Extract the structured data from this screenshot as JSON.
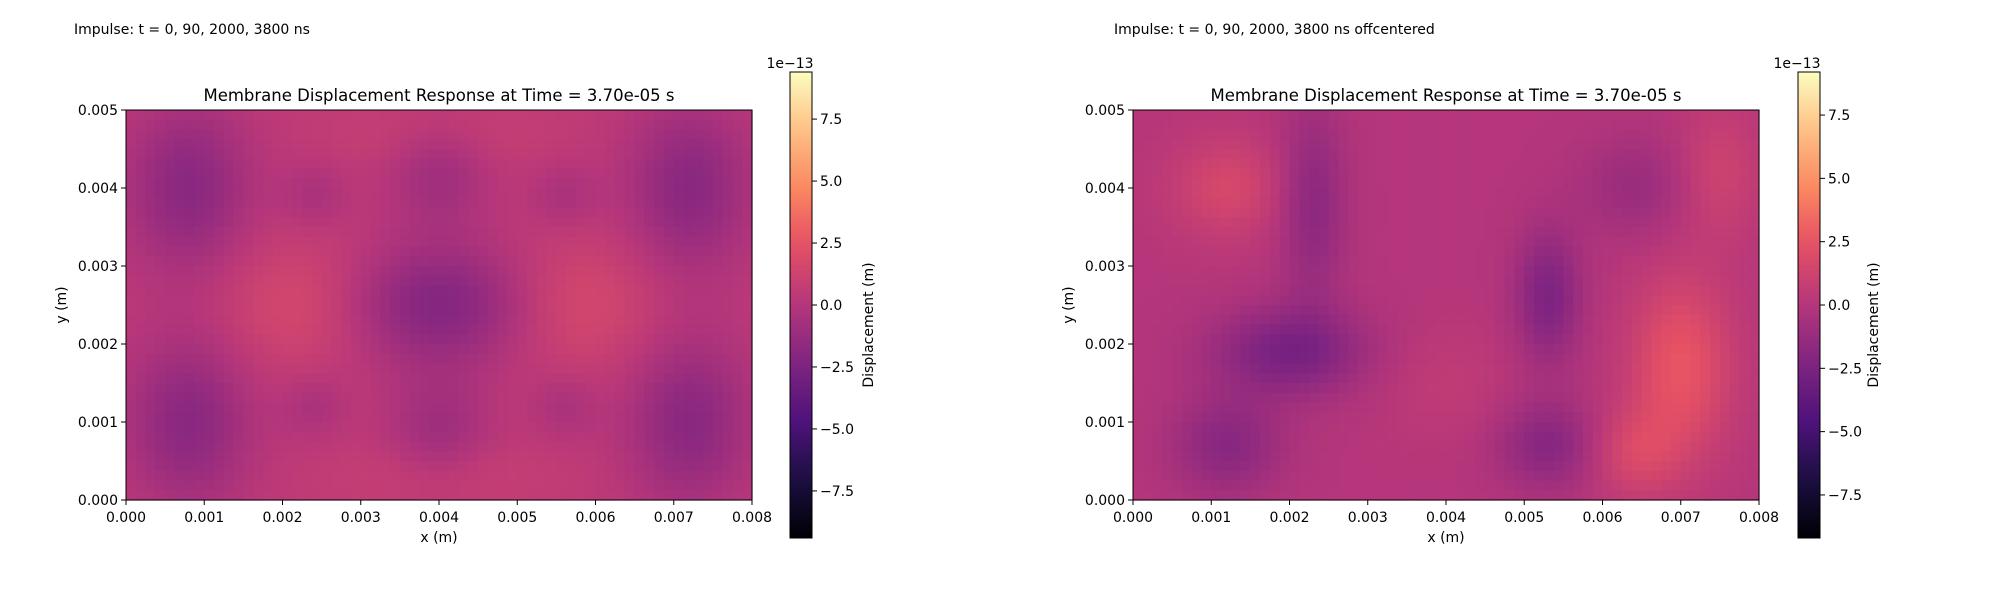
{
  "figure": {
    "captions": [
      "Impulse: t = 0, 90, 2000, 3800 ns",
      "Impulse: t = 0, 90, 2000, 3800 ns offcentered"
    ]
  },
  "chart_data": [
    {
      "type": "heatmap",
      "title": "Membrane Displacement Response at Time = 3.70e-05 s",
      "xlabel": "x (m)",
      "ylabel": "y (m)",
      "xlim": [
        0,
        0.008
      ],
      "ylim": [
        0,
        0.005
      ],
      "x_ticks": [
        "0.000",
        "0.001",
        "0.002",
        "0.003",
        "0.004",
        "0.005",
        "0.006",
        "0.007",
        "0.008"
      ],
      "y_ticks": [
        "0.000",
        "0.001",
        "0.002",
        "0.003",
        "0.004",
        "0.005"
      ],
      "colormap": "magma",
      "colorbar": {
        "label": "Displacement (m)",
        "scale_label": "1e−13",
        "range": [
          -9.4,
          9.4
        ],
        "ticks": [
          7.5,
          5.0,
          2.5,
          0.0,
          -2.5,
          -5.0,
          -7.5
        ],
        "tick_labels": [
          "7.5",
          "5.0",
          "2.5",
          "0.0",
          "−2.5",
          "−5.0",
          "−7.5"
        ]
      },
      "grid": false,
      "field": {
        "base": 0.4,
        "features": [
          {
            "x": 0.004,
            "y": 0.0025,
            "sx": 0.00085,
            "sy": 0.00055,
            "amp": -2.6
          },
          {
            "x": 0.0022,
            "y": 0.0025,
            "sx": 0.0007,
            "sy": 0.0006,
            "amp": 1.3
          },
          {
            "x": 0.0058,
            "y": 0.0025,
            "sx": 0.0007,
            "sy": 0.0006,
            "amp": 1.3
          },
          {
            "x": 0.0008,
            "y": 0.004,
            "sx": 0.00055,
            "sy": 0.00075,
            "amp": -2.3
          },
          {
            "x": 0.0072,
            "y": 0.004,
            "sx": 0.00055,
            "sy": 0.00075,
            "amp": -2.3
          },
          {
            "x": 0.0008,
            "y": 0.001,
            "sx": 0.00055,
            "sy": 0.00075,
            "amp": -2.3
          },
          {
            "x": 0.0072,
            "y": 0.001,
            "sx": 0.00055,
            "sy": 0.00075,
            "amp": -2.3
          },
          {
            "x": 0.004,
            "y": 0.0042,
            "sx": 0.00045,
            "sy": 0.0005,
            "amp": -1.4
          },
          {
            "x": 0.004,
            "y": 0.0009,
            "sx": 0.00045,
            "sy": 0.0005,
            "amp": -1.4
          },
          {
            "x": 0.0024,
            "y": 0.0039,
            "sx": 0.0003,
            "sy": 0.0003,
            "amp": -0.9
          },
          {
            "x": 0.0056,
            "y": 0.0039,
            "sx": 0.0003,
            "sy": 0.0003,
            "amp": -0.9
          },
          {
            "x": 0.0024,
            "y": 0.0012,
            "sx": 0.0003,
            "sy": 0.0003,
            "amp": -0.9
          },
          {
            "x": 0.0056,
            "y": 0.0012,
            "sx": 0.0003,
            "sy": 0.0003,
            "amp": -0.9
          },
          {
            "x": 0.004,
            "y": 0.0047,
            "sx": 0.001,
            "sy": 0.0003,
            "amp": 0.6
          },
          {
            "x": 0.004,
            "y": 0.0003,
            "sx": 0.001,
            "sy": 0.0003,
            "amp": 0.6
          }
        ]
      }
    },
    {
      "type": "heatmap",
      "title": "Membrane Displacement Response at Time = 3.70e-05 s",
      "xlabel": "x (m)",
      "ylabel": "y (m)",
      "xlim": [
        0,
        0.008
      ],
      "ylim": [
        0,
        0.005
      ],
      "x_ticks": [
        "0.000",
        "0.001",
        "0.002",
        "0.003",
        "0.004",
        "0.005",
        "0.006",
        "0.007",
        "0.008"
      ],
      "y_ticks": [
        "0.000",
        "0.001",
        "0.002",
        "0.003",
        "0.004",
        "0.005"
      ],
      "colormap": "magma",
      "colorbar": {
        "label": "Displacement (m)",
        "scale_label": "1e−13",
        "range": [
          -9.2,
          9.2
        ],
        "ticks": [
          7.5,
          5.0,
          2.5,
          0.0,
          -2.5,
          -5.0,
          -7.5
        ],
        "tick_labels": [
          "7.5",
          "5.0",
          "2.5",
          "0.0",
          "−2.5",
          "−5.0",
          "−7.5"
        ]
      },
      "grid": false,
      "field": {
        "base": 0.0,
        "features": [
          {
            "x": 0.0012,
            "y": 0.004,
            "sx": 0.0005,
            "sy": 0.00045,
            "amp": 1.6
          },
          {
            "x": 0.0023,
            "y": 0.0038,
            "sx": 0.0003,
            "sy": 0.0009,
            "amp": -1.8
          },
          {
            "x": 0.002,
            "y": 0.0019,
            "sx": 0.0007,
            "sy": 0.0004,
            "amp": -2.6
          },
          {
            "x": 0.0012,
            "y": 0.0007,
            "sx": 0.0005,
            "sy": 0.00045,
            "amp": -1.9
          },
          {
            "x": 0.0053,
            "y": 0.0026,
            "sx": 0.0003,
            "sy": 0.0006,
            "amp": -2.4
          },
          {
            "x": 0.0053,
            "y": 0.0007,
            "sx": 0.00045,
            "sy": 0.0004,
            "amp": -2.0
          },
          {
            "x": 0.007,
            "y": 0.0017,
            "sx": 0.00045,
            "sy": 0.0008,
            "amp": 2.6
          },
          {
            "x": 0.0064,
            "y": 0.0006,
            "sx": 0.0004,
            "sy": 0.0004,
            "amp": 1.6
          },
          {
            "x": 0.0075,
            "y": 0.0042,
            "sx": 0.00035,
            "sy": 0.0006,
            "amp": 1.2
          },
          {
            "x": 0.0064,
            "y": 0.004,
            "sx": 0.0005,
            "sy": 0.00045,
            "amp": -1.2
          },
          {
            "x": 0.004,
            "y": 0.0015,
            "sx": 0.0006,
            "sy": 0.0005,
            "amp": 0.5
          }
        ]
      }
    }
  ]
}
